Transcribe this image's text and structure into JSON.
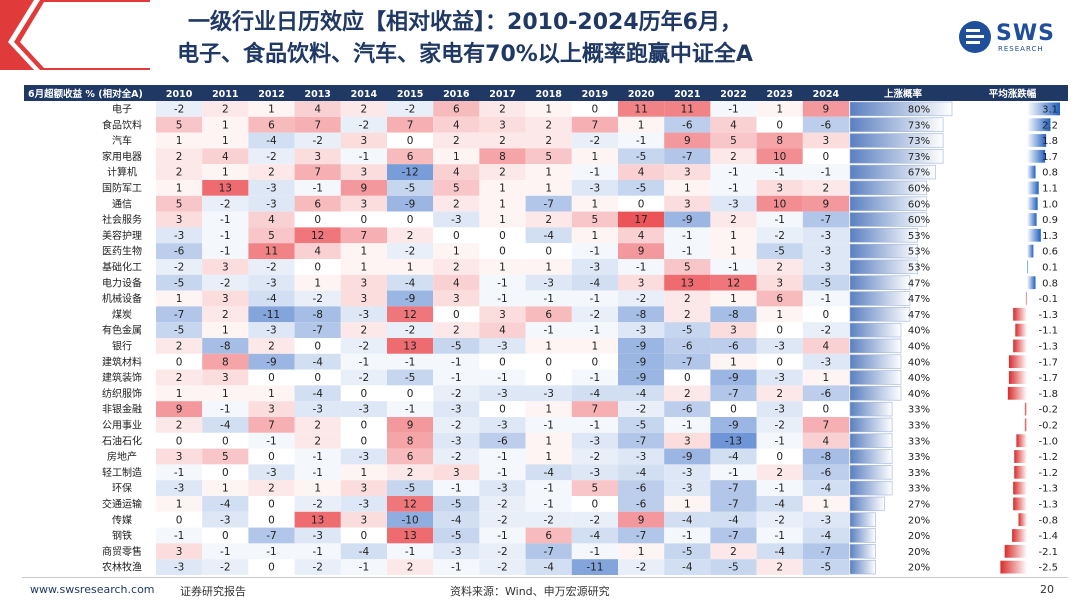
{
  "title": {
    "line1": "一级行业日历效应【相对收益】：2010-2024历年6月，",
    "line2": "电子、食品饮料、汽车、家电有70%以上概率跑赢中证全A"
  },
  "logo": {
    "text": "SWS",
    "sub": "RESEARCH"
  },
  "footer": {
    "url": "www.swsresearch.com",
    "report": "证券研究报告",
    "source": "资料来源：Wind、申万宏源研究",
    "page": "20"
  },
  "colors": {
    "header_bg": "#1f3864",
    "pos": "#e8363c",
    "neg": "#3a6fc6",
    "up_bar": "#5a7fc0",
    "avg_pos": "#1f5fbf",
    "avg_neg": "#d92b2b"
  },
  "table": {
    "header_label": "6月超额收益 % (相对全A)",
    "years": [
      "2010",
      "2011",
      "2012",
      "2013",
      "2014",
      "2015",
      "2016",
      "2017",
      "2018",
      "2019",
      "2020",
      "2021",
      "2022",
      "2023",
      "2024"
    ],
    "prob_label": "上涨概率",
    "avg_label": "平均涨跌幅",
    "rows": [
      {
        "name": "电子",
        "v": [
          -2,
          2,
          1,
          4,
          2,
          -2,
          6,
          2,
          1,
          0,
          11,
          11,
          -1,
          1,
          9
        ],
        "prob": "80%",
        "p": 80,
        "avg": "3.1",
        "a": 3.1
      },
      {
        "name": "食品饮料",
        "v": [
          5,
          1,
          6,
          7,
          -2,
          7,
          4,
          3,
          2,
          7,
          1,
          -6,
          4,
          0,
          -6
        ],
        "prob": "73%",
        "p": 73,
        "avg": "2.2",
        "a": 2.2
      },
      {
        "name": "汽车",
        "v": [
          1,
          1,
          -4,
          -2,
          3,
          0,
          2,
          2,
          2,
          -2,
          -1,
          9,
          5,
          8,
          3
        ],
        "prob": "73%",
        "p": 73,
        "avg": "1.8",
        "a": 1.8
      },
      {
        "name": "家用电器",
        "v": [
          2,
          4,
          -2,
          3,
          -1,
          6,
          1,
          8,
          5,
          1,
          -5,
          -7,
          2,
          10,
          0
        ],
        "prob": "73%",
        "p": 73,
        "avg": "1.7",
        "a": 1.7
      },
      {
        "name": "计算机",
        "v": [
          2,
          1,
          2,
          7,
          3,
          -12,
          4,
          2,
          1,
          -1,
          4,
          3,
          -1,
          -1,
          -1
        ],
        "prob": "67%",
        "p": 67,
        "avg": "0.8",
        "a": 0.8
      },
      {
        "name": "国防军工",
        "v": [
          1,
          13,
          -3,
          -1,
          9,
          -5,
          5,
          1,
          1,
          -3,
          -5,
          1,
          -1,
          3,
          2
        ],
        "prob": "60%",
        "p": 60,
        "avg": "1.1",
        "a": 1.1
      },
      {
        "name": "通信",
        "v": [
          5,
          -2,
          -3,
          6,
          3,
          -9,
          2,
          1,
          -7,
          1,
          0,
          3,
          -3,
          10,
          9
        ],
        "prob": "60%",
        "p": 60,
        "avg": "1.0",
        "a": 1.0
      },
      {
        "name": "社会服务",
        "v": [
          3,
          -1,
          4,
          0,
          0,
          0,
          -3,
          1,
          2,
          5,
          17,
          -9,
          2,
          -1,
          -7
        ],
        "prob": "60%",
        "p": 60,
        "avg": "0.9",
        "a": 0.9
      },
      {
        "name": "美容护理",
        "v": [
          -3,
          -1,
          5,
          12,
          7,
          2,
          0,
          0,
          -4,
          1,
          4,
          -1,
          1,
          -2,
          -3
        ],
        "prob": "53%",
        "p": 53,
        "avg": "1.3",
        "a": 1.3
      },
      {
        "name": "医药生物",
        "v": [
          -6,
          -1,
          11,
          4,
          1,
          -2,
          1,
          0,
          0,
          -1,
          9,
          -1,
          1,
          -5,
          -3
        ],
        "prob": "53%",
        "p": 53,
        "avg": "0.6",
        "a": 0.6
      },
      {
        "name": "基础化工",
        "v": [
          -2,
          3,
          -2,
          0,
          1,
          1,
          2,
          1,
          1,
          -3,
          -1,
          5,
          -1,
          2,
          -3
        ],
        "prob": "53%",
        "p": 53,
        "avg": "0.1",
        "a": 0.1
      },
      {
        "name": "电力设备",
        "v": [
          -5,
          -2,
          -3,
          1,
          3,
          -4,
          4,
          -1,
          -3,
          -4,
          3,
          13,
          12,
          3,
          -5
        ],
        "prob": "47%",
        "p": 47,
        "avg": "0.8",
        "a": 0.8
      },
      {
        "name": "机械设备",
        "v": [
          1,
          3,
          -4,
          -2,
          3,
          -9,
          3,
          -1,
          -1,
          -1,
          -2,
          2,
          1,
          6,
          -1
        ],
        "prob": "47%",
        "p": 47,
        "avg": "-0.1",
        "a": -0.1
      },
      {
        "name": "煤炭",
        "v": [
          -7,
          2,
          -11,
          -8,
          -3,
          12,
          0,
          3,
          6,
          -2,
          -8,
          2,
          -8,
          1,
          0
        ],
        "prob": "47%",
        "p": 47,
        "avg": "-1.3",
        "a": -1.3
      },
      {
        "name": "有色金属",
        "v": [
          -5,
          1,
          -3,
          -7,
          2,
          -2,
          2,
          4,
          -1,
          -1,
          -3,
          -5,
          3,
          0,
          -2
        ],
        "prob": "40%",
        "p": 40,
        "avg": "-1.1",
        "a": -1.1
      },
      {
        "name": "银行",
        "v": [
          2,
          -8,
          2,
          0,
          -2,
          13,
          -5,
          -3,
          1,
          1,
          -9,
          -6,
          -6,
          -3,
          4
        ],
        "prob": "40%",
        "p": 40,
        "avg": "-1.3",
        "a": -1.3
      },
      {
        "name": "建筑材料",
        "v": [
          0,
          8,
          -9,
          -4,
          -1,
          -1,
          -1,
          0,
          0,
          0,
          -9,
          -7,
          1,
          0,
          -3
        ],
        "prob": "40%",
        "p": 40,
        "avg": "-1.7",
        "a": -1.7
      },
      {
        "name": "建筑装饰",
        "v": [
          2,
          3,
          0,
          0,
          -2,
          -5,
          -1,
          -1,
          0,
          -1,
          -9,
          0,
          -9,
          -3,
          1
        ],
        "prob": "40%",
        "p": 40,
        "avg": "-1.7",
        "a": -1.7
      },
      {
        "name": "纺织服饰",
        "v": [
          1,
          1,
          1,
          -4,
          0,
          0,
          -2,
          -3,
          -3,
          -4,
          -4,
          2,
          -7,
          2,
          -6
        ],
        "prob": "40%",
        "p": 40,
        "avg": "-1.8",
        "a": -1.8
      },
      {
        "name": "非银金融",
        "v": [
          9,
          -1,
          3,
          -3,
          -3,
          -1,
          -3,
          0,
          1,
          7,
          -2,
          -6,
          0,
          -3,
          0
        ],
        "prob": "33%",
        "p": 33,
        "avg": "-0.2",
        "a": -0.2
      },
      {
        "name": "公用事业",
        "v": [
          2,
          -4,
          7,
          2,
          0,
          9,
          -2,
          -3,
          -1,
          -1,
          -5,
          -1,
          -9,
          -2,
          7
        ],
        "prob": "33%",
        "p": 33,
        "avg": "-0.2",
        "a": -0.2
      },
      {
        "name": "石油石化",
        "v": [
          0,
          0,
          -1,
          2,
          0,
          8,
          -3,
          -6,
          1,
          -3,
          -7,
          3,
          -13,
          -1,
          4
        ],
        "prob": "33%",
        "p": 33,
        "avg": "-1.0",
        "a": -1.0
      },
      {
        "name": "房地产",
        "v": [
          3,
          5,
          0,
          -1,
          -3,
          6,
          -2,
          -1,
          1,
          -2,
          -3,
          -9,
          -4,
          0,
          -8
        ],
        "prob": "33%",
        "p": 33,
        "avg": "-1.2",
        "a": -1.2
      },
      {
        "name": "轻工制造",
        "v": [
          -1,
          0,
          -3,
          -1,
          1,
          2,
          3,
          -1,
          -4,
          -3,
          -4,
          -3,
          -1,
          2,
          -6
        ],
        "prob": "33%",
        "p": 33,
        "avg": "-1.2",
        "a": -1.2
      },
      {
        "name": "环保",
        "v": [
          -3,
          1,
          2,
          1,
          3,
          -5,
          -1,
          -3,
          -1,
          5,
          -6,
          -3,
          -7,
          -1,
          -4
        ],
        "prob": "33%",
        "p": 33,
        "avg": "-1.3",
        "a": -1.3
      },
      {
        "name": "交通运输",
        "v": [
          1,
          -4,
          0,
          -2,
          -3,
          12,
          -5,
          -2,
          -1,
          0,
          -6,
          1,
          -7,
          -4,
          1
        ],
        "prob": "27%",
        "p": 27,
        "avg": "-1.3",
        "a": -1.3
      },
      {
        "name": "传媒",
        "v": [
          0,
          -3,
          0,
          13,
          3,
          -10,
          -4,
          -2,
          -2,
          -2,
          9,
          -4,
          -4,
          -2,
          -3
        ],
        "prob": "20%",
        "p": 20,
        "avg": "-0.8",
        "a": -0.8
      },
      {
        "name": "钢铁",
        "v": [
          -1,
          0,
          -7,
          -3,
          0,
          13,
          -5,
          -1,
          6,
          -4,
          -7,
          -1,
          -7,
          -1,
          -4
        ],
        "prob": "20%",
        "p": 20,
        "avg": "-1.4",
        "a": -1.4
      },
      {
        "name": "商贸零售",
        "v": [
          3,
          -1,
          -1,
          -1,
          -4,
          -1,
          -3,
          -2,
          -7,
          -1,
          1,
          -5,
          2,
          -4,
          -7
        ],
        "prob": "20%",
        "p": 20,
        "avg": "-2.1",
        "a": -2.1
      },
      {
        "name": "农林牧渔",
        "v": [
          -3,
          -2,
          0,
          -2,
          -1,
          2,
          -1,
          -2,
          -4,
          -11,
          -2,
          -4,
          -5,
          2,
          -5
        ],
        "prob": "20%",
        "p": 20,
        "avg": "-2.5",
        "a": -2.5
      }
    ]
  }
}
